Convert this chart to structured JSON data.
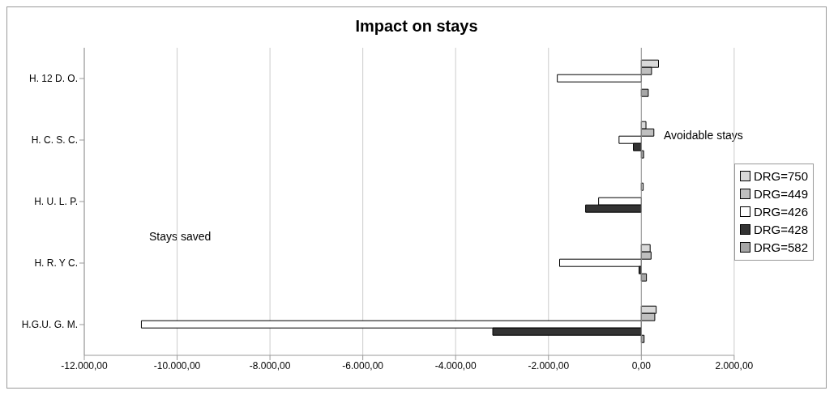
{
  "chart_data": {
    "type": "bar",
    "orientation": "horizontal",
    "title": "Impact on stays",
    "categories": [
      "H. 12 D. O.",
      "H. C. S. C.",
      "H. U. L. P.",
      "H. R. Y C.",
      "H.G.U. G. M."
    ],
    "series": [
      {
        "name": "DRG=750",
        "color": "#d9d9d9",
        "values": [
          370,
          100,
          40,
          190,
          320
        ]
      },
      {
        "name": "DRG=449",
        "color": "#bfbfbf",
        "values": [
          220,
          270,
          0,
          210,
          290
        ]
      },
      {
        "name": "DRG=426",
        "color": "#ffffff",
        "values": [
          -1810,
          -480,
          -920,
          -1760,
          -10770
        ]
      },
      {
        "name": "DRG=428",
        "color": "#333333",
        "values": [
          0,
          -170,
          -1200,
          -50,
          -3200
        ]
      },
      {
        "name": "DRG=582",
        "color": "#a6a6a6",
        "values": [
          150,
          50,
          null,
          110,
          60
        ]
      }
    ],
    "xlim": [
      -12000,
      2000
    ],
    "xticks": [
      {
        "value": -12000,
        "label": "-12.000,00"
      },
      {
        "value": -10000,
        "label": "-10.000,00"
      },
      {
        "value": -8000,
        "label": "-8.000,00"
      },
      {
        "value": -6000,
        "label": "-6.000,00"
      },
      {
        "value": -4000,
        "label": "-4.000,00"
      },
      {
        "value": -2000,
        "label": "-2.000,00"
      },
      {
        "value": 0,
        "label": "0,00"
      },
      {
        "value": 2000,
        "label": "2.000,00"
      }
    ],
    "annotations": [
      "Avoidable stays",
      "Stays saved"
    ],
    "grid": "x",
    "legend": "right"
  }
}
